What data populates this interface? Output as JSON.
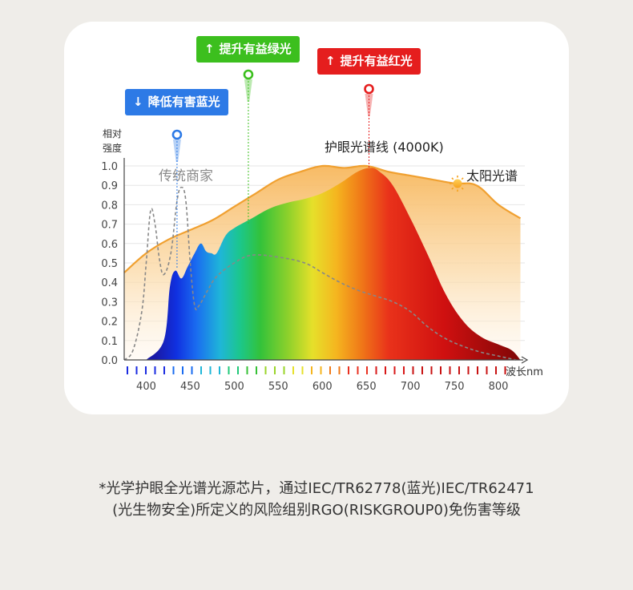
{
  "chart_data": {
    "type": "area",
    "title": "",
    "ylabel_line1": "相对",
    "ylabel_line2": "强度",
    "xlabel": "波长nm",
    "xlim": [
      375,
      830
    ],
    "ylim": [
      0,
      1.0
    ],
    "x_ticks": [
      400,
      450,
      500,
      550,
      600,
      650,
      700,
      750,
      800
    ],
    "y_ticks": [
      "0.0",
      "0.1",
      "0.2",
      "0.3",
      "0.4",
      "0.5",
      "0.6",
      "0.7",
      "0.8",
      "0.9",
      "1.0"
    ],
    "series": [
      {
        "name": "太阳光谱",
        "style": "orange-filled",
        "color": "#f0a030",
        "x": [
          375,
          400,
          425,
          450,
          475,
          500,
          525,
          550,
          575,
          600,
          625,
          650,
          675,
          700,
          725,
          750,
          775,
          800,
          825
        ],
        "y": [
          0.45,
          0.55,
          0.62,
          0.67,
          0.72,
          0.79,
          0.86,
          0.93,
          0.97,
          1.0,
          0.99,
          1.0,
          0.97,
          0.95,
          0.93,
          0.91,
          0.9,
          0.8,
          0.73
        ]
      },
      {
        "name": "护眼光谱线 (4000K)",
        "style": "rainbow-filled",
        "color": "#e02020",
        "x": [
          400,
          420,
          427,
          433,
          440,
          447,
          455,
          462,
          468,
          474,
          480,
          490,
          500,
          520,
          540,
          560,
          580,
          600,
          620,
          640,
          655,
          665,
          680,
          700,
          720,
          740,
          760,
          780,
          800,
          815,
          825
        ],
        "y": [
          0.0,
          0.1,
          0.38,
          0.46,
          0.42,
          0.48,
          0.55,
          0.6,
          0.56,
          0.55,
          0.55,
          0.64,
          0.68,
          0.73,
          0.78,
          0.81,
          0.83,
          0.86,
          0.91,
          0.97,
          0.99,
          0.97,
          0.9,
          0.73,
          0.54,
          0.34,
          0.2,
          0.12,
          0.08,
          0.05,
          0.0
        ]
      },
      {
        "name": "传统商家",
        "style": "gray-dashed",
        "color": "#888888",
        "x": [
          375,
          385,
          395,
          400,
          405,
          410,
          415,
          420,
          428,
          435,
          440,
          445,
          450,
          455,
          460,
          470,
          480,
          500,
          520,
          550,
          580,
          600,
          620,
          640,
          660,
          680,
          700,
          720,
          740,
          760,
          780,
          800,
          810,
          820
        ],
        "y": [
          0.0,
          0.05,
          0.25,
          0.5,
          0.77,
          0.7,
          0.52,
          0.44,
          0.55,
          0.82,
          0.89,
          0.82,
          0.5,
          0.28,
          0.28,
          0.36,
          0.43,
          0.5,
          0.54,
          0.53,
          0.5,
          0.45,
          0.4,
          0.36,
          0.33,
          0.3,
          0.25,
          0.17,
          0.11,
          0.07,
          0.04,
          0.02,
          0.01,
          0.0
        ]
      }
    ],
    "annotations": {
      "traditional": "传统商家",
      "eye_line": "护眼光谱线 (4000K)",
      "sun": "太阳光谱"
    },
    "callouts": [
      {
        "text": "降低有害蓝光",
        "arrow": "↓",
        "color": "#2d7ae6",
        "x_nm": 435
      },
      {
        "text": "提升有益绿光",
        "arrow": "↑",
        "color": "#3cbf1e",
        "x_nm": 516
      },
      {
        "text": "提升有益红光",
        "arrow": "↑",
        "color": "#e51e1e",
        "x_nm": 653
      }
    ],
    "grid": true,
    "legend": "none"
  },
  "footnote": {
    "line1": "*光学护眼全光谱光源芯片，通过IEC/TR62778(蓝光)IEC/TR62471",
    "line2": "(光生物安全)所定义的风险组别RGO(RISKGROUP0)免伤害等级"
  }
}
